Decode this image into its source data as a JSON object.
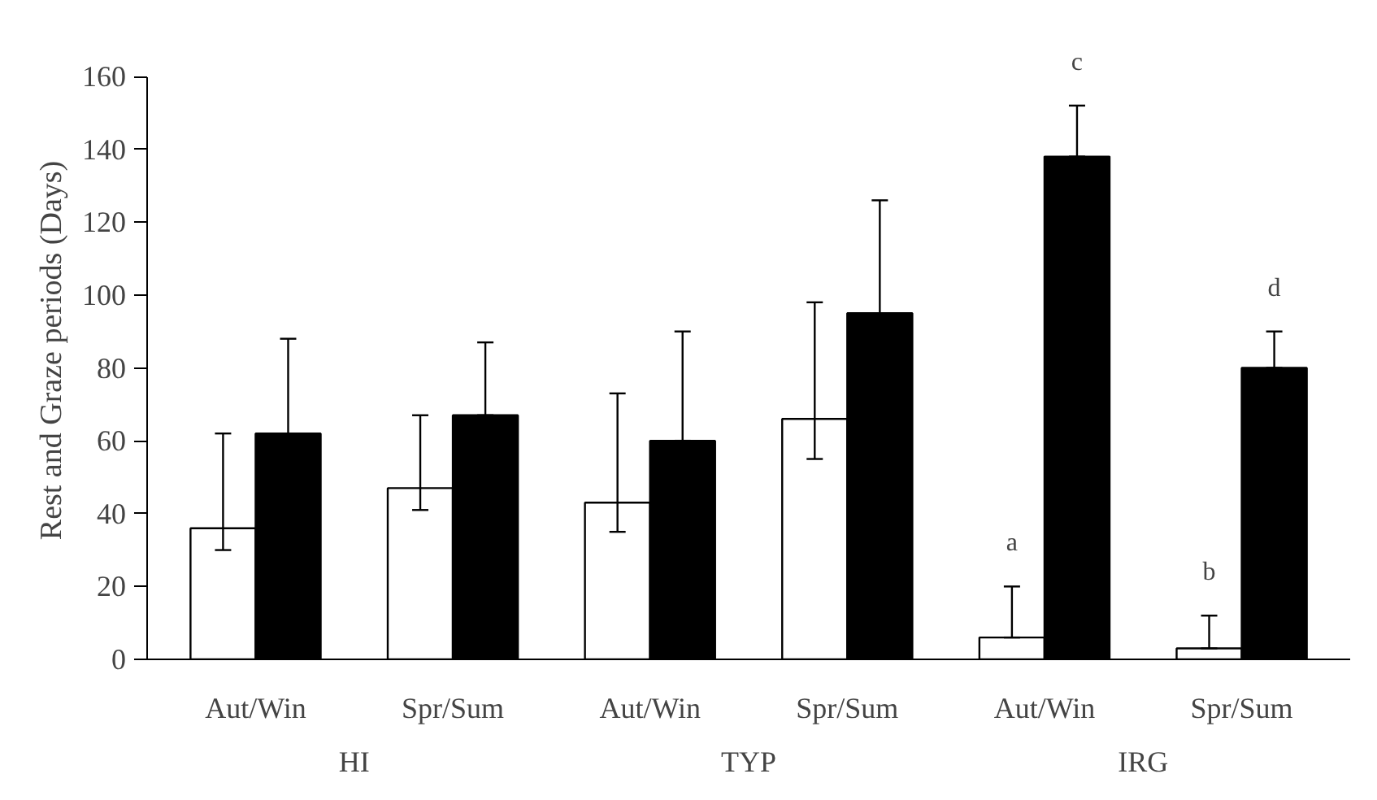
{
  "chart_data": {
    "type": "bar",
    "ylabel": "Rest and Graze periods (Days)",
    "categories": [
      "Aut/Win",
      "Spr/Sum",
      "Aut/Win",
      "Spr/Sum",
      "Aut/Win",
      "Spr/Sum"
    ],
    "series": [
      {
        "color": "#ffffff",
        "values": [
          36,
          47,
          43,
          66,
          6,
          3
        ],
        "errors": [
          [
            30,
            62
          ],
          [
            41,
            67
          ],
          [
            35,
            73
          ],
          [
            55,
            98
          ],
          [
            6,
            20
          ],
          [
            3,
            12
          ]
        ],
        "value_labels": [
          null,
          null,
          null,
          null,
          "a",
          "b"
        ]
      },
      {
        "color": "#000000",
        "values": [
          62,
          67,
          60,
          95,
          138,
          80
        ],
        "errors": [
          [
            62,
            88
          ],
          [
            67,
            87
          ],
          [
            60,
            90
          ],
          [
            95,
            126
          ],
          [
            138,
            152
          ],
          [
            80,
            90
          ]
        ],
        "value_labels": [
          null,
          null,
          null,
          null,
          "c",
          "d"
        ]
      }
    ],
    "ylim": [
      0,
      160
    ],
    "yticks": [
      0,
      20,
      40,
      60,
      80,
      100,
      120,
      140,
      160
    ],
    "annotations": [
      "HI",
      "TYP",
      "IRG"
    ],
    "grid": false
  }
}
